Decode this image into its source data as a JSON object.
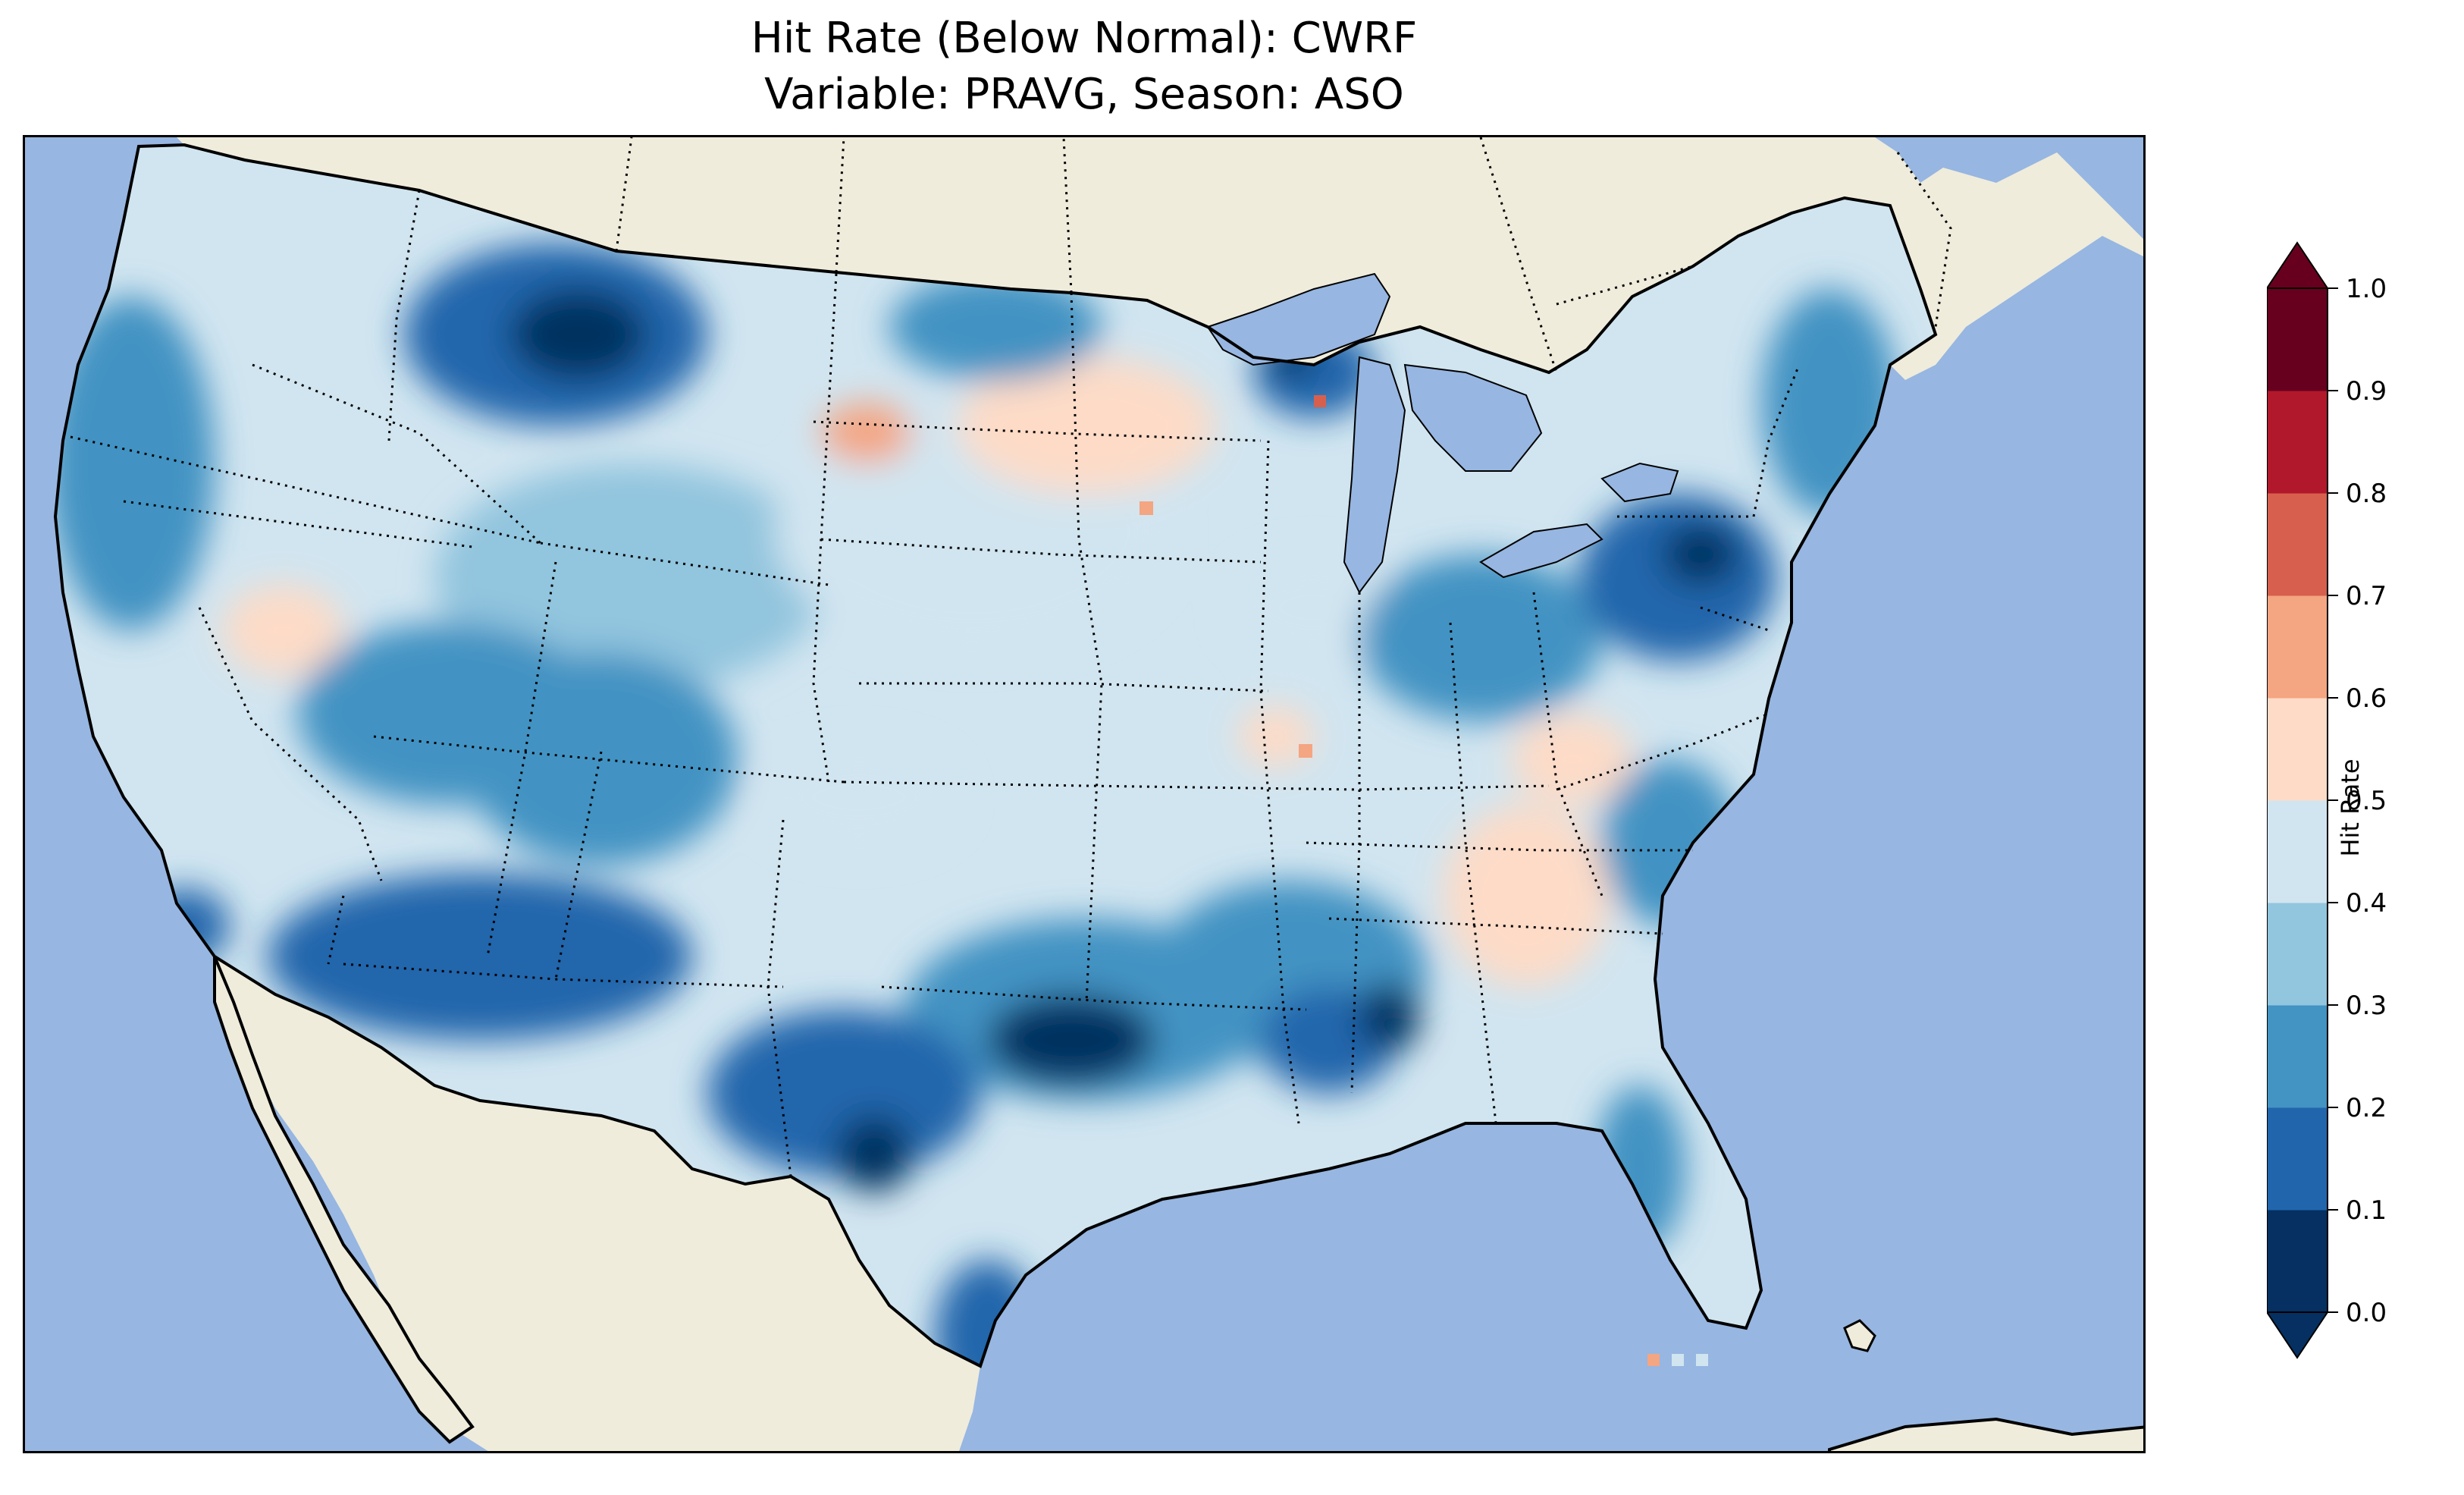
{
  "title": {
    "line1": "Hit Rate (Below Normal): CWRF",
    "line2": "Variable: PRAVG, Season: ASO"
  },
  "map": {
    "ocean_color": "#97b6e1",
    "land_color": "#efecdc",
    "lake_color": "#97b6e1",
    "coastline_color": "#000000",
    "state_border_style": "dotted"
  },
  "colorbar": {
    "label": "Hit Rate",
    "ticks": [
      "0.0",
      "0.1",
      "0.2",
      "0.3",
      "0.4",
      "0.5",
      "0.6",
      "0.7",
      "0.8",
      "0.9",
      "1.0"
    ],
    "colors": [
      "#053061",
      "#2166ac",
      "#4393c3",
      "#92c5de",
      "#d1e5f0",
      "#fddbc7",
      "#f4a582",
      "#d6604d",
      "#b2182b",
      "#67001f"
    ],
    "extend": "both"
  },
  "chart_data": {
    "type": "heatmap",
    "title": "Hit Rate (Below Normal): CWRF\nVariable: PRAVG, Season: ASO",
    "colorbar_label": "Hit Rate",
    "value_range": [
      0.0,
      1.0
    ],
    "bins": [
      0.0,
      0.1,
      0.2,
      0.3,
      0.4,
      0.5,
      0.6,
      0.7,
      0.8,
      0.9,
      1.0
    ],
    "region": "Contiguous United States",
    "regions": [
      {
        "name": "Northern Montana",
        "value": 0.05
      },
      {
        "name": "Pacific Northwest coast",
        "value": 0.25
      },
      {
        "name": "Northern California coast",
        "value": 0.2
      },
      {
        "name": "Great Basin",
        "value": 0.4
      },
      {
        "name": "Arizona / New Mexico",
        "value": 0.2
      },
      {
        "name": "Central Texas",
        "value": 0.05
      },
      {
        "name": "Texas Gulf Coast",
        "value": 0.15
      },
      {
        "name": "Northern Plains",
        "value": 0.45
      },
      {
        "name": "Lower Mississippi Valley",
        "value": 0.05
      },
      {
        "name": "Southeast",
        "value": 0.5
      },
      {
        "name": "Pennsylvania / New York",
        "value": 0.05
      },
      {
        "name": "New England",
        "value": 0.25
      },
      {
        "name": "Florida Peninsula",
        "value": 0.35
      },
      {
        "name": "Upper Midwest",
        "value": 0.2
      }
    ]
  }
}
